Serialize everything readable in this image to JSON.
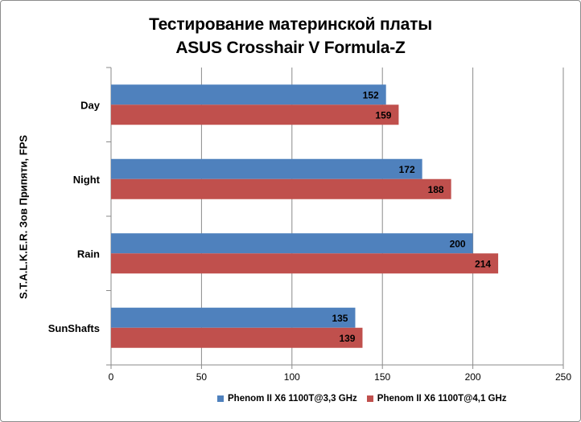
{
  "chart_data": {
    "type": "bar",
    "orientation": "horizontal",
    "title_lines": [
      "Тестирование материнской платы",
      "ASUS Crosshair V Formula-Z"
    ],
    "ylabel": "S.T.A.L.K.E.R. Зов Припяти, FPS",
    "xlabel": "",
    "categories": [
      "Day",
      "Night",
      "Rain",
      "SunShafts"
    ],
    "series": [
      {
        "name": "Phenom II X6 1100T@3,3 GHz",
        "values": [
          152,
          172,
          200,
          135
        ],
        "color": "#4f81bd"
      },
      {
        "name": "Phenom II X6 1100T@4,1 GHz",
        "values": [
          159,
          188,
          214,
          139
        ],
        "color": "#c0504d"
      }
    ],
    "xlim": [
      0,
      250
    ],
    "xticks": [
      0,
      50,
      100,
      150,
      200,
      250
    ],
    "grid": true,
    "data_labels": true,
    "legend_position": "bottom"
  }
}
